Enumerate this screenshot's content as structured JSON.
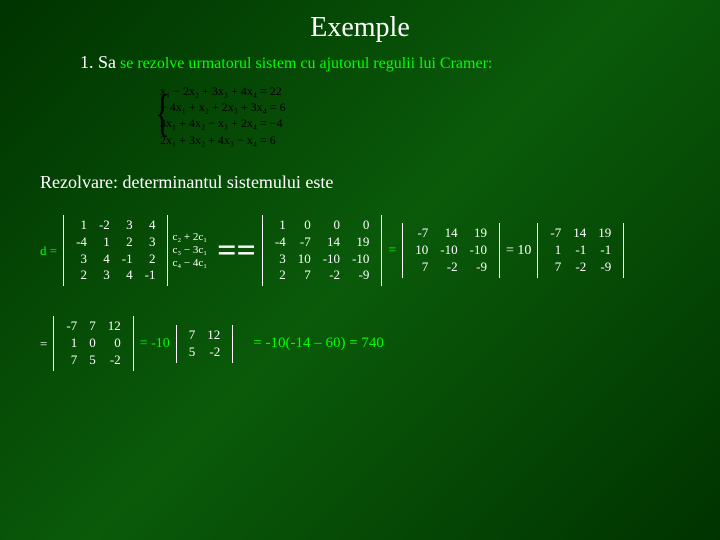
{
  "title": "Exemple",
  "subtitle_lead": "1. Sa",
  "subtitle_rest": " se rezolve urmatorul sistem cu ajutorul regulii lui Cramer:",
  "system": {
    "l1": "x₁ − 2x₂ + 3x₃ + 4x₄ = 22",
    "l2": "− 4x₁ + x₂ + 2x₃ + 3x₄ = 6",
    "l3": "3x₁ + 4x₂ − x₃ + 2x₄ = −4",
    "l4": "2x₁ + 3x₂ + 4x₃ − x₄ = 6"
  },
  "resolv": "Rezolvare: determinantul sistemului este",
  "d_label": "d =",
  "detA": [
    [
      "1",
      "-2",
      "3",
      "4"
    ],
    [
      "-4",
      "1",
      "2",
      "3"
    ],
    [
      "3",
      "4",
      "-1",
      "2"
    ],
    [
      "2",
      "3",
      "4",
      "-1"
    ]
  ],
  "colnote": {
    "a": "c₂ + 2c₁",
    "b": "c₃ − 3c₁",
    "c": "c₄ − 4c₁"
  },
  "detB": [
    [
      "1",
      "0",
      "0",
      "0"
    ],
    [
      "-4",
      "-7",
      "14",
      "19"
    ],
    [
      "3",
      "10",
      "-10",
      "-10"
    ],
    [
      "2",
      "7",
      "-2",
      "-9"
    ]
  ],
  "detC": [
    [
      "-7",
      "14",
      "19"
    ],
    [
      "10",
      "-10",
      "-10"
    ],
    [
      "7",
      "-2",
      "-9"
    ]
  ],
  "detD": [
    [
      "-7",
      "14",
      "19"
    ],
    [
      "1",
      "-1",
      "-1"
    ],
    [
      "7",
      "-2",
      "-9"
    ]
  ],
  "eq_10": "= 10",
  "detE": [
    [
      "-7",
      "7",
      "12"
    ],
    [
      "1",
      "0",
      "0"
    ],
    [
      "7",
      "5",
      "-2"
    ]
  ],
  "neg10": "= -10",
  "detF": [
    [
      "7",
      "12"
    ],
    [
      "5",
      "-2"
    ]
  ],
  "final": "=  -10(-14 – 60) = 740",
  "eq": "="
}
